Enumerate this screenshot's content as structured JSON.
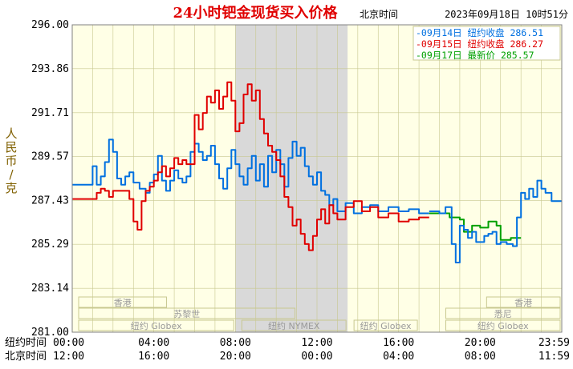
{
  "header": {
    "title": "24小时钯金现货买入价格",
    "clock_label": "北京时间",
    "timestamp": "2023年09月18日 10时51分",
    "title_color": "#e00000"
  },
  "legend": [
    {
      "text": "-09月14日  纽约收盘 286.51",
      "color": "#0070e0"
    },
    {
      "text": "-09月15日  纽约收盘 286.27",
      "color": "#e00000"
    },
    {
      "text": "-09月17日    最新价 285.57",
      "color": "#00a000"
    }
  ],
  "y_axis_title": [
    "人",
    "民",
    "币",
    "/",
    "克"
  ],
  "y_ticks": [
    "296.00",
    "293.86",
    "291.71",
    "289.57",
    "287.43",
    "285.29",
    "283.14",
    "281.00"
  ],
  "x_rows": [
    {
      "label": "纽约时间",
      "ticks": [
        "00:00",
        "04:00",
        "08:00",
        "12:00",
        "16:00",
        "20:00",
        "23:59"
      ]
    },
    {
      "label": "北京时间",
      "ticks": [
        "12:00",
        "16:00",
        "20:00",
        "00:00",
        "04:00",
        "08:00",
        "11:59"
      ]
    }
  ],
  "markets": [
    {
      "name": "香港",
      "row": 1,
      "start": 0.0,
      "end": 4.7
    },
    {
      "name": "香港",
      "row": 1,
      "start": 20.0,
      "end": 24.0
    },
    {
      "name": "苏黎世",
      "row": 2,
      "start": 0.0,
      "end": 11.0
    },
    {
      "name": "悉尼",
      "row": 2,
      "start": 18.0,
      "end": 24.0
    },
    {
      "name": "纽约 Globex",
      "row": 3,
      "start": 0.0,
      "end": 8.0
    },
    {
      "name": "纽约 NYMEX",
      "row": 3,
      "start": 8.0,
      "end": 13.5
    },
    {
      "name": "纽约 Globex",
      "row": 3,
      "start": 13.5,
      "end": 17.0
    },
    {
      "name": "纽约 Globex",
      "row": 3,
      "start": 18.0,
      "end": 24.0
    }
  ],
  "chart_data": {
    "type": "line",
    "title": "24小时钯金现货买入价格",
    "ylabel": "人民币/克",
    "xlabel": "纽约时间 / 北京时间",
    "ylim": [
      281.0,
      296.0
    ],
    "xlim": [
      0,
      24
    ],
    "y_ticks": [
      296.0,
      293.86,
      291.71,
      289.57,
      287.43,
      285.29,
      283.14,
      281.0
    ],
    "x_ticks": [
      0,
      4,
      8,
      12,
      16,
      20,
      24
    ],
    "grid": true,
    "shaded_range": [
      8.0,
      13.5
    ],
    "legend_position": "top-right",
    "series": [
      {
        "name": "09月14日",
        "close_label": "纽约收盘 286.51",
        "color": "#0070e0",
        "x": [
          0.0,
          0.5,
          1.0,
          1.2,
          1.4,
          1.6,
          1.8,
          2.0,
          2.2,
          2.4,
          2.6,
          2.8,
          3.0,
          3.3,
          3.6,
          3.8,
          4.0,
          4.2,
          4.4,
          4.6,
          4.8,
          5.0,
          5.2,
          5.4,
          5.6,
          5.8,
          6.0,
          6.2,
          6.4,
          6.6,
          6.8,
          7.0,
          7.2,
          7.4,
          7.6,
          7.8,
          8.0,
          8.2,
          8.4,
          8.6,
          8.8,
          9.0,
          9.2,
          9.4,
          9.6,
          9.8,
          10.0,
          10.2,
          10.4,
          10.6,
          10.8,
          11.0,
          11.2,
          11.4,
          11.6,
          11.8,
          12.0,
          12.2,
          12.4,
          12.6,
          12.8,
          13.0,
          13.4,
          13.8,
          14.2,
          14.6,
          15.0,
          15.5,
          16.0,
          16.5,
          17.0,
          17.5
        ],
        "y": [
          288.2,
          288.2,
          289.1,
          288.2,
          288.6,
          289.3,
          290.4,
          289.8,
          288.5,
          288.2,
          288.6,
          288.8,
          288.3,
          288.0,
          287.8,
          288.3,
          288.7,
          289.6,
          288.4,
          287.9,
          288.4,
          288.9,
          288.5,
          288.3,
          288.6,
          289.8,
          290.2,
          289.8,
          289.4,
          289.6,
          290.1,
          289.2,
          288.5,
          288.0,
          289.0,
          289.9,
          289.2,
          288.6,
          288.2,
          289.0,
          289.6,
          288.4,
          289.2,
          288.1,
          289.6,
          288.8,
          289.9,
          289.2,
          288.1,
          289.5,
          290.3,
          289.6,
          290.0,
          289.1,
          288.6,
          288.2,
          288.8,
          287.9,
          287.7,
          287.2,
          287.5,
          286.9,
          287.3,
          286.8,
          287.1,
          287.2,
          286.9,
          287.1,
          286.9,
          287.0,
          286.8,
          286.8
        ]
      },
      {
        "name": "09月15日",
        "close_label": "纽约收盘 286.27",
        "color": "#e00000",
        "x": [
          0.0,
          0.5,
          1.0,
          1.2,
          1.4,
          1.6,
          1.8,
          2.0,
          2.4,
          2.8,
          3.0,
          3.2,
          3.4,
          3.6,
          3.8,
          4.0,
          4.2,
          4.4,
          4.6,
          4.8,
          5.0,
          5.2,
          5.4,
          5.6,
          5.8,
          6.0,
          6.2,
          6.4,
          6.6,
          6.8,
          7.0,
          7.2,
          7.4,
          7.6,
          7.8,
          8.0,
          8.2,
          8.4,
          8.6,
          8.8,
          9.0,
          9.2,
          9.4,
          9.6,
          9.8,
          10.0,
          10.2,
          10.4,
          10.6,
          10.8,
          11.0,
          11.2,
          11.4,
          11.6,
          11.8,
          12.0,
          12.2,
          12.4,
          12.6,
          12.8,
          13.0,
          13.4,
          13.8,
          14.2,
          14.6,
          15.0,
          15.5,
          16.0,
          16.5,
          17.0,
          17.5
        ],
        "y": [
          287.5,
          287.5,
          287.5,
          287.8,
          288.0,
          287.9,
          287.6,
          287.9,
          287.9,
          287.5,
          286.4,
          286.0,
          287.4,
          287.9,
          288.1,
          288.4,
          288.8,
          289.1,
          288.6,
          289.0,
          289.5,
          289.2,
          289.4,
          289.2,
          289.2,
          291.6,
          290.9,
          291.7,
          292.5,
          292.2,
          292.8,
          291.9,
          292.5,
          293.2,
          292.3,
          290.8,
          291.2,
          292.6,
          293.1,
          292.3,
          292.8,
          291.4,
          290.7,
          290.1,
          289.8,
          289.4,
          288.6,
          287.6,
          287.1,
          286.2,
          286.5,
          285.8,
          285.3,
          285.0,
          285.7,
          286.5,
          287.0,
          286.3,
          287.2,
          286.8,
          286.5,
          287.1,
          287.4,
          286.9,
          287.1,
          286.6,
          286.8,
          286.4,
          286.5,
          286.6,
          286.6
        ]
      },
      {
        "name": "09月17日",
        "close_label": "最新价 285.57",
        "color": "#00a000",
        "x": [
          17.5,
          18.0,
          18.5,
          19.0,
          19.2,
          19.6,
          20.0,
          20.4,
          20.8,
          21.0,
          21.5,
          22.0
        ],
        "y": [
          286.8,
          286.8,
          286.6,
          286.5,
          285.9,
          286.2,
          286.1,
          286.4,
          286.2,
          285.5,
          285.6,
          285.6
        ]
      },
      {
        "name": "09月18日",
        "color": "#0070e0",
        "x": [
          17.5,
          18.0,
          18.3,
          18.6,
          18.8,
          19.0,
          19.2,
          19.4,
          19.6,
          19.8,
          20.0,
          20.2,
          20.4,
          20.6,
          20.8,
          21.0,
          21.3,
          21.6,
          21.8,
          22.0,
          22.2,
          22.4,
          22.6,
          22.8,
          23.0,
          23.2,
          23.5,
          24.0
        ],
        "y": [
          286.9,
          286.8,
          287.1,
          285.3,
          284.4,
          286.2,
          286.0,
          285.6,
          285.9,
          285.4,
          285.4,
          285.7,
          285.8,
          285.9,
          285.3,
          285.4,
          285.3,
          285.2,
          286.6,
          287.8,
          287.5,
          288.0,
          287.6,
          288.4,
          288.0,
          287.8,
          287.4,
          287.4
        ]
      }
    ]
  }
}
